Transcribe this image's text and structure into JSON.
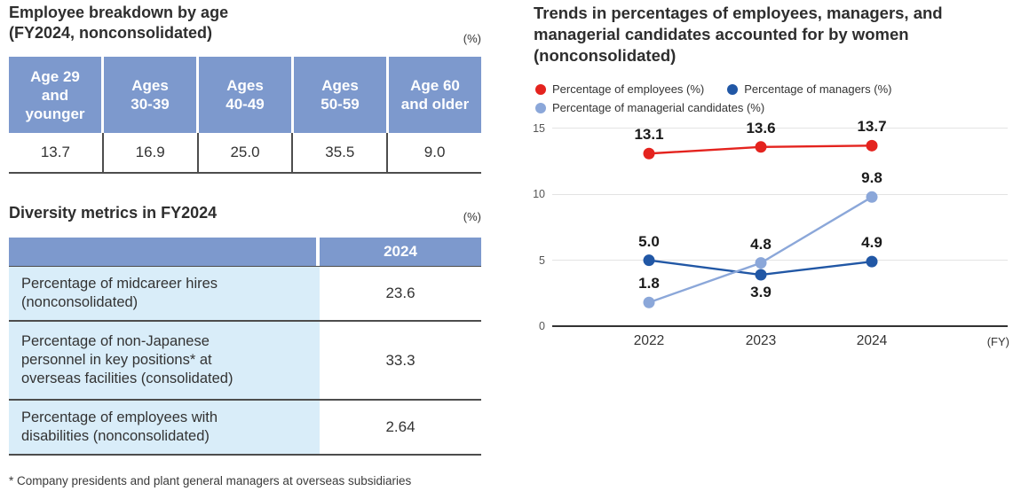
{
  "left": {
    "age_table": {
      "title": "Employee breakdown by age\n(FY2024, nonconsolidated)",
      "unit": "(%)",
      "columns": [
        "Age 29\nand\nyounger",
        "Ages\n30-39",
        "Ages\n40-49",
        "Ages\n50-59",
        "Age 60\nand older"
      ],
      "values": [
        "13.7",
        "16.9",
        "25.0",
        "35.5",
        "9.0"
      ]
    },
    "diversity_table": {
      "title": "Diversity metrics in FY2024",
      "unit": "(%)",
      "year_header": "2024",
      "rows": [
        {
          "label": "Percentage of midcareer hires\n(nonconsolidated)",
          "value": "23.6"
        },
        {
          "label": "Percentage of non-Japanese\npersonnel in key positions* at\noverseas facilities (consolidated)",
          "value": "33.3"
        },
        {
          "label": "Percentage of employees with\ndisabilities (nonconsolidated)",
          "value": "2.64"
        }
      ]
    },
    "footnote": "* Company presidents and plant general managers at overseas subsidiaries"
  },
  "chart": {
    "title": "Trends in percentages of employees, managers, and\nmanagerial candidates accounted for by women\n(nonconsolidated)",
    "legend": [
      {
        "label": "Percentage of employees (%)",
        "color": "#e4231e"
      },
      {
        "label": "Percentage of managers (%)",
        "color": "#2157a5"
      },
      {
        "label": "Percentage of managerial candidates (%)",
        "color": "#8ba7d9"
      }
    ]
  },
  "chart_data": {
    "type": "line",
    "title": "Trends in percentages of employees, managers, and managerial candidates accounted for by women (nonconsolidated)",
    "categories": [
      "2022",
      "2023",
      "2024"
    ],
    "x_axis_suffix": "(FY)",
    "y_ticks": [
      0,
      5,
      10,
      15
    ],
    "ylim": [
      0,
      15
    ],
    "grid": true,
    "legend_position": "top",
    "series": [
      {
        "name": "Percentage of employees (%)",
        "color": "#e4231e",
        "values": [
          13.1,
          13.6,
          13.7
        ],
        "label_positions": [
          "above",
          "above",
          "above"
        ]
      },
      {
        "name": "Percentage of managers (%)",
        "color": "#2157a5",
        "values": [
          5.0,
          3.9,
          4.9
        ],
        "label_positions": [
          "above",
          "below",
          "above"
        ]
      },
      {
        "name": "Percentage of managerial candidates (%)",
        "color": "#8ba7d9",
        "values": [
          1.8,
          4.8,
          9.8
        ],
        "label_positions": [
          "above",
          "above",
          "above"
        ]
      }
    ]
  },
  "colors": {
    "table_header_blue": "#7d99cd",
    "table_label_light_blue": "#d9edf9",
    "border_dark": "#4d4d4d",
    "grid_gray": "#e3e3e3"
  }
}
